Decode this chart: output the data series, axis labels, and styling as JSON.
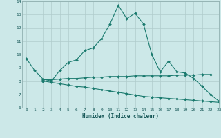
{
  "x": [
    0,
    1,
    2,
    3,
    4,
    5,
    6,
    7,
    8,
    9,
    10,
    11,
    12,
    13,
    14,
    15,
    16,
    17,
    18,
    19,
    20,
    21,
    22,
    23
  ],
  "y_upper": [
    9.7,
    8.8,
    8.15,
    8.0,
    8.8,
    9.4,
    9.6,
    10.3,
    10.5,
    11.2,
    12.3,
    13.7,
    12.7,
    13.1,
    12.3,
    10.0,
    8.7,
    9.5,
    8.7,
    8.6,
    8.2,
    7.6,
    7.0,
    6.5
  ],
  "x_mid": [
    2,
    3,
    4,
    5,
    6,
    7,
    8,
    9,
    10,
    11,
    12,
    13,
    14,
    15,
    16,
    17,
    18,
    19,
    20,
    21,
    22
  ],
  "y_mid": [
    8.1,
    8.1,
    8.15,
    8.2,
    8.2,
    8.25,
    8.3,
    8.3,
    8.35,
    8.35,
    8.35,
    8.4,
    8.4,
    8.4,
    8.4,
    8.4,
    8.45,
    8.45,
    8.45,
    8.5,
    8.5
  ],
  "x_low": [
    2,
    3,
    4,
    5,
    6,
    7,
    8,
    9,
    10,
    11,
    12,
    13,
    14,
    15,
    16,
    17,
    18,
    19,
    20,
    21,
    22,
    23
  ],
  "y_low": [
    8.0,
    7.9,
    7.8,
    7.7,
    7.6,
    7.55,
    7.45,
    7.35,
    7.25,
    7.15,
    7.05,
    6.95,
    6.85,
    6.8,
    6.75,
    6.7,
    6.65,
    6.6,
    6.55,
    6.5,
    6.45,
    6.4
  ],
  "line_color": "#1a7a6e",
  "bg_color": "#cce8e8",
  "grid_color": "#b0cccc",
  "xlabel": "Humidex (Indice chaleur)",
  "ylim": [
    6,
    14
  ],
  "xlim": [
    -0.5,
    23
  ],
  "yticks": [
    6,
    7,
    8,
    9,
    10,
    11,
    12,
    13,
    14
  ],
  "xticks": [
    0,
    1,
    2,
    3,
    4,
    5,
    6,
    7,
    8,
    9,
    10,
    11,
    12,
    13,
    14,
    15,
    16,
    17,
    18,
    19,
    20,
    21,
    22,
    23
  ],
  "xtick_labels": [
    "0",
    "1",
    "2",
    "3",
    "4",
    "5",
    "6",
    "7",
    "8",
    "9",
    "10",
    "11",
    "12",
    "13",
    "14",
    "15",
    "16",
    "17",
    "18",
    "19",
    "20",
    "21",
    "22",
    "23"
  ]
}
